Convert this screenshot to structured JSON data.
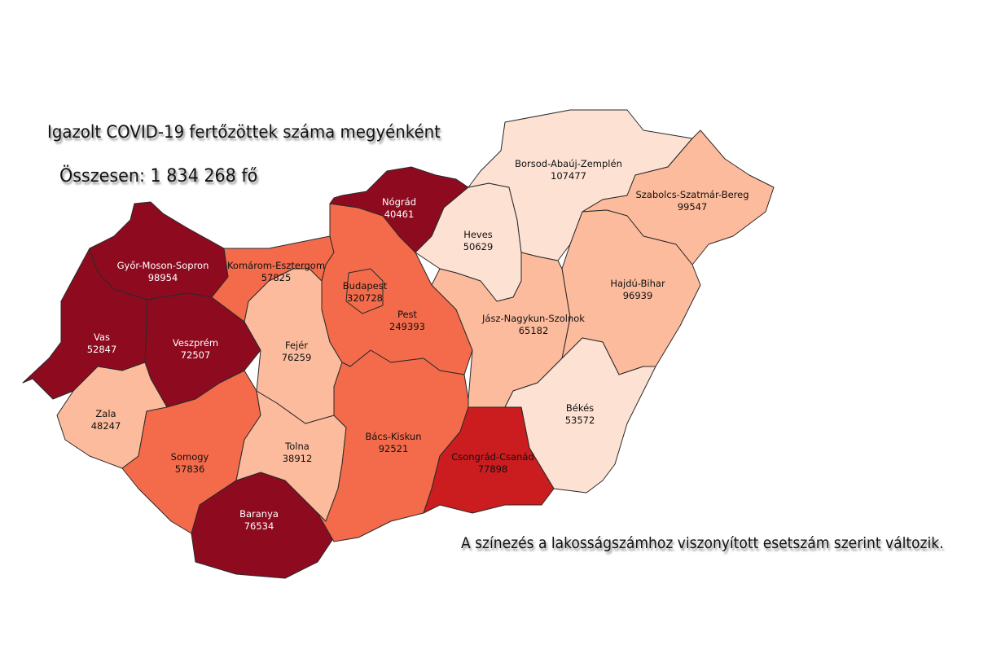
{
  "title": "Igazolt COVID-19 fertőzöttek száma megyénként",
  "total": "Összesen: 1 834 268 fő",
  "note": "A színezés a lakosságszámhoz viszonyított esetszám szerint változik.",
  "color_scale": {
    "darkest": "#8e0b1f",
    "dark": "#cb1c1f",
    "medium": "#f36b4b",
    "light": "#fcbb9c",
    "lightest": "#fde1d3"
  },
  "counties": [
    {
      "name": "Győr-Moson-Sopron",
      "value": "98954",
      "color": "#8e0b1f"
    },
    {
      "name": "Vas",
      "value": "52847",
      "color": "#8e0b1f"
    },
    {
      "name": "Veszprém",
      "value": "72507",
      "color": "#8e0b1f"
    },
    {
      "name": "Zala",
      "value": "48247",
      "color": "#fcbb9c"
    },
    {
      "name": "Somogy",
      "value": "57836",
      "color": "#f36b4b"
    },
    {
      "name": "Baranya",
      "value": "76534",
      "color": "#8e0b1f"
    },
    {
      "name": "Tolna",
      "value": "38912",
      "color": "#fcbb9c"
    },
    {
      "name": "Fejér",
      "value": "76259",
      "color": "#fcbb9c"
    },
    {
      "name": "Komárom-Esztergom",
      "value": "57825",
      "color": "#f36b4b"
    },
    {
      "name": "Pest",
      "value": "249393",
      "color": "#f36b4b"
    },
    {
      "name": "Budapest",
      "value": "320728",
      "color": "#f36b4b"
    },
    {
      "name": "Nógrád",
      "value": "40461",
      "color": "#8e0b1f"
    },
    {
      "name": "Bács-Kiskun",
      "value": "92521",
      "color": "#f36b4b"
    },
    {
      "name": "Heves",
      "value": "50629",
      "color": "#fde1d3"
    },
    {
      "name": "Borsod-Abaúj-Zemplén",
      "value": "107477",
      "color": "#fde1d3"
    },
    {
      "name": "Szabolcs-Szatmár-Bereg",
      "value": "99547",
      "color": "#fcbb9c"
    },
    {
      "name": "Hajdú-Bihar",
      "value": "96939",
      "color": "#fcbb9c"
    },
    {
      "name": "Jász-Nagykun-Szolnok",
      "value": "65182",
      "color": "#fcbb9c"
    },
    {
      "name": "Békés",
      "value": "53572",
      "color": "#fde1d3"
    },
    {
      "name": "Csongrád-Csanád",
      "value": "77898",
      "color": "#cb1c1f"
    }
  ]
}
